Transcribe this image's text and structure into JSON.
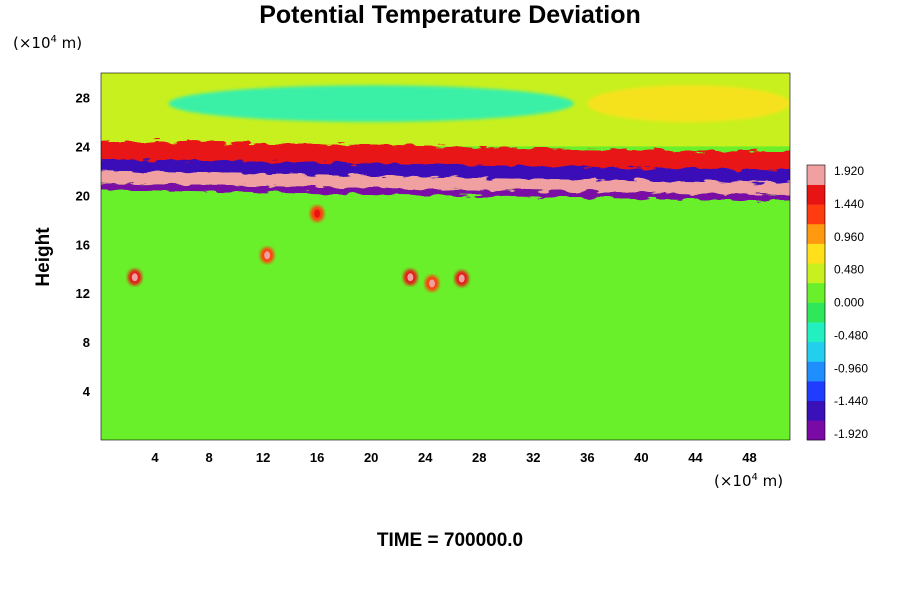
{
  "chart_data": {
    "type": "heatmap",
    "title": "Potential Temperature Deviation",
    "ylabel": "Height",
    "x_unit": {
      "prefix": "(×10",
      "exp": "4",
      "suffix": " m)"
    },
    "y_unit": {
      "prefix": "(×10",
      "exp": "4",
      "suffix": " m)"
    },
    "x_ticks": [
      4,
      8,
      12,
      16,
      20,
      24,
      28,
      32,
      36,
      40,
      44,
      48
    ],
    "y_ticks": [
      4,
      8,
      12,
      16,
      20,
      24,
      28
    ],
    "xlim": [
      0,
      51
    ],
    "ylim": [
      0,
      30
    ],
    "colorbar": {
      "ticks": [
        "1.920",
        "1.440",
        "0.960",
        "0.480",
        "0.000",
        "-0.480",
        "-0.960",
        "-1.440",
        "-1.920"
      ],
      "range": [
        -2.0,
        2.0
      ],
      "colors": [
        "#7a0aa5",
        "#3a10b8",
        "#1f3cff",
        "#1f8fff",
        "#22d0ee",
        "#22f0c0",
        "#2ee85a",
        "#6af02a",
        "#c8f01e",
        "#ffe01a",
        "#ff9a10",
        "#ff3c10",
        "#e81414",
        "#f0a0a0"
      ]
    },
    "field_features": [
      {
        "name": "background",
        "value": 0.0
      },
      {
        "name": "upper-layer",
        "y_range": [
          24,
          30
        ],
        "value": 0.3
      },
      {
        "name": "upper-cool-band",
        "y_range": [
          26,
          29
        ],
        "x_range": [
          5,
          35
        ],
        "value": -0.5
      },
      {
        "name": "upper-warm-patch",
        "y_range": [
          26,
          29
        ],
        "x_range": [
          36,
          51
        ],
        "value": 0.6
      },
      {
        "name": "warm-band-high",
        "y_range": [
          22,
          24
        ],
        "value": 1.5
      },
      {
        "name": "cold-band-high",
        "y_range": [
          21,
          22.5
        ],
        "value": -1.6
      },
      {
        "name": "warm-band-core",
        "y_range": [
          20.5,
          21.5
        ],
        "value": 1.92
      },
      {
        "name": "cold-band-low",
        "y_range": [
          20,
          20.5
        ],
        "value": -1.92
      },
      {
        "name": "blob",
        "x": 2.5,
        "y": 13.3,
        "value": 1.5
      },
      {
        "name": "blob",
        "x": 12.3,
        "y": 15.1,
        "value": 1.4
      },
      {
        "name": "blob",
        "x": 16.0,
        "y": 18.5,
        "value": 1.2
      },
      {
        "name": "blob",
        "x": 22.9,
        "y": 13.3,
        "value": 1.6
      },
      {
        "name": "blob",
        "x": 24.5,
        "y": 12.8,
        "value": 1.4
      },
      {
        "name": "blob",
        "x": 26.7,
        "y": 13.2,
        "value": 1.5
      }
    ]
  },
  "time_label": "TIME = 700000.0"
}
